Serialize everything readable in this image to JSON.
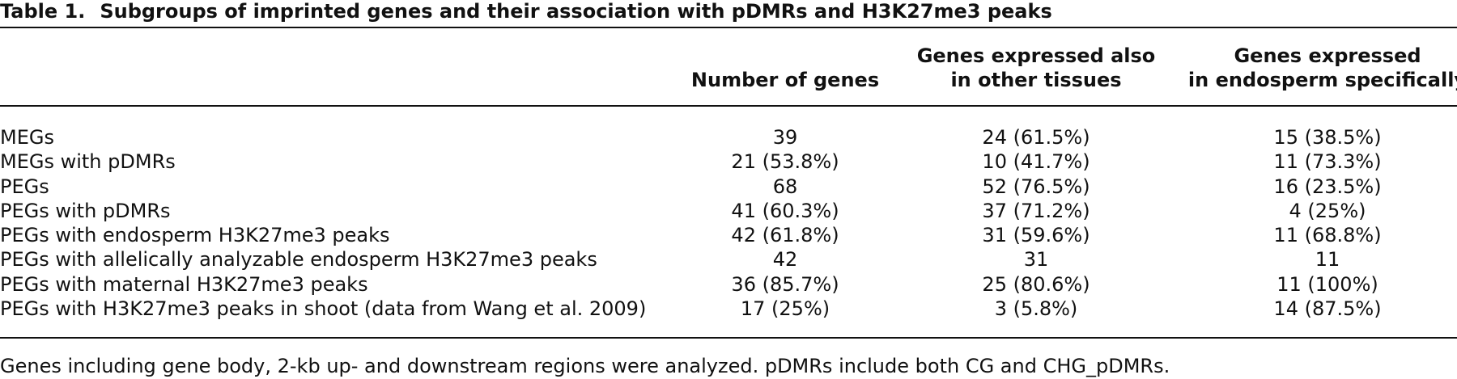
{
  "caption": {
    "label": "Table 1.",
    "title": "Subgroups of imprinted genes and their association with pDMRs and H3K27me3 peaks"
  },
  "columns": {
    "number": [
      "Number of genes"
    ],
    "other_tissues": [
      "Genes expressed also",
      "in other tissues"
    ],
    "endosperm": [
      "Genes expressed",
      "in endosperm specifically"
    ]
  },
  "rows": [
    [
      "MEGs",
      "39",
      "24 (61.5%)",
      "15 (38.5%)"
    ],
    [
      "MEGs with pDMRs",
      "21 (53.8%)",
      "10 (41.7%)",
      "11 (73.3%)"
    ],
    [
      "PEGs",
      "68",
      "52 (76.5%)",
      "16 (23.5%)"
    ],
    [
      "PEGs with pDMRs",
      "41 (60.3%)",
      "37 (71.2%)",
      "4 (25%)"
    ],
    [
      "PEGs with endosperm H3K27me3 peaks",
      "42 (61.8%)",
      "31 (59.6%)",
      "11 (68.8%)"
    ],
    [
      "PEGs with allelically analyzable endosperm H3K27me3 peaks",
      "42",
      "31",
      "11"
    ],
    [
      "PEGs with maternal H3K27me3 peaks",
      "36 (85.7%)",
      "25 (80.6%)",
      "11 (100%)"
    ],
    [
      "PEGs with H3K27me3 peaks in shoot (data from Wang et al. 2009)",
      "17 (25%)",
      "3 (5.8%)",
      "14 (87.5%)"
    ]
  ],
  "footnote": "Genes including gene body, 2-kb up- and downstream regions were analyzed. pDMRs include both CG and CHG_pDMRs."
}
